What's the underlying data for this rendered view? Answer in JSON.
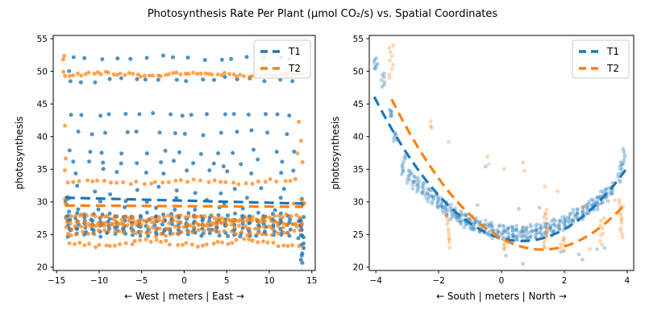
{
  "title": "Photosynthesis Rate Per Plant (μmol CO₂/s) vs. Spatial Coordinates",
  "accent_colors": {
    "t1_blue": "#1f77b4",
    "t2_orange": "#ff7f0e"
  },
  "chart_data": [
    {
      "type": "scatter",
      "panel": "west-east",
      "xlabel": "← West | meters | East →",
      "ylabel": "photosynthesis",
      "xlim": [
        -15.4,
        15.4
      ],
      "ylim": [
        19.5,
        55.5
      ],
      "xticks": [
        -15,
        -10,
        -5,
        0,
        5,
        10,
        15
      ],
      "yticks": [
        20,
        25,
        30,
        35,
        40,
        45,
        50,
        55
      ],
      "legend": {
        "position": "upper-right",
        "entries": [
          {
            "label": "T1",
            "color": "#1f77b4",
            "linestyle": "dashed"
          },
          {
            "label": "T2",
            "color": "#ff7f0e",
            "linestyle": "dashed"
          }
        ]
      },
      "series": [
        {
          "name": "T1",
          "color": "#1f77b4",
          "alpha": 0.8,
          "marker_px": 2.5,
          "seed": 11,
          "bands": [
            {
              "y": 52.05,
              "amp": 0.35,
              "x0": -13.1,
              "x1": 13.7,
              "step": 1.72
            },
            {
              "y": 48.75,
              "amp": 0.42,
              "x0": -13.4,
              "x1": 13.9,
              "step": 1.52
            },
            {
              "y": 43.4,
              "amp": 0.28,
              "x0": -13.3,
              "x1": 13.6,
              "step": 1.62
            },
            {
              "y": 40.6,
              "amp": 0.32,
              "x0": -12.8,
              "x1": 13.6,
              "step": 1.9
            },
            {
              "y": 37.6,
              "amp": 0.35,
              "x0": -13.6,
              "x1": 13.4,
              "step": 2.2
            },
            {
              "y": 36.0,
              "amp": 0.5,
              "x0": -13.4,
              "x1": 13.2,
              "step": 2.05
            },
            {
              "y": 34.6,
              "amp": 0.45,
              "x0": -12.6,
              "x1": 13.6,
              "step": 2.6
            },
            {
              "y": 31.9,
              "amp": 0.8,
              "x0": -13.0,
              "x1": 13.5,
              "step": 2.45
            },
            {
              "y": 30.15,
              "amp": 0.5,
              "x0": -13.6,
              "x1": 12.8,
              "step": 3.1
            },
            {
              "y": 28.9,
              "amp": 0.4,
              "x0": -12.4,
              "x1": 13.0,
              "step": 2.85
            }
          ],
          "columns": [
            {
              "x0": -13.5,
              "x1": 13.05,
              "step": 0.92,
              "y": 26.5,
              "half": 1.5,
              "n": 7
            }
          ],
          "stacks": [
            {
              "x": 13.88,
              "y0": 20.5,
              "y1": 27.8,
              "n": 14
            },
            {
              "x": 13.55,
              "y0": 24.4,
              "y1": 27.6,
              "n": 6
            },
            {
              "x": -13.65,
              "y0": 26.8,
              "y1": 30.4,
              "n": 5
            }
          ],
          "outliers": [
            [
              -13.6,
              50.1
            ],
            [
              13.9,
              29.6
            ],
            [
              13.75,
              30.4
            ],
            [
              -13.9,
              30.2
            ]
          ],
          "trend": {
            "shape": "linear",
            "x0": -14,
            "y0": 30.65,
            "x1": 14,
            "y1": 29.75
          }
        },
        {
          "name": "T2",
          "color": "#ff7f0e",
          "alpha": 0.72,
          "marker_px": 2.5,
          "seed": 23,
          "bands": [
            {
              "y": 49.55,
              "amp": 0.32,
              "x0": -14.0,
              "x1": 14.0,
              "step": 0.47
            },
            {
              "y": 33.1,
              "amp": 0.42,
              "x0": -13.8,
              "x1": 13.8,
              "step": 0.75
            },
            {
              "y": 27.6,
              "amp": 0.45,
              "x0": -13.9,
              "x1": 13.9,
              "step": 0.5
            },
            {
              "y": 26.9,
              "amp": 0.4,
              "x0": -13.85,
              "x1": 13.85,
              "step": 0.52
            },
            {
              "y": 26.3,
              "amp": 0.45,
              "x0": -13.8,
              "x1": 13.9,
              "step": 0.55
            },
            {
              "y": 25.3,
              "amp": 0.5,
              "x0": -13.8,
              "x1": 13.8,
              "step": 0.62
            },
            {
              "y": 23.7,
              "amp": 0.55,
              "x0": -13.5,
              "x1": 13.9,
              "step": 0.6
            }
          ],
          "columns": [],
          "stacks": [
            {
              "x": -14.0,
              "y0": 50.3,
              "y1": 52.8,
              "n": 3
            }
          ],
          "outliers": [
            [
              -14,
              41.7
            ],
            [
              -13.9,
              36.7
            ],
            [
              -13.95,
              34.9
            ],
            [
              -14,
              30.5
            ],
            [
              -13.9,
              29.7
            ],
            [
              13.7,
              54.0
            ],
            [
              13.5,
              42.3
            ],
            [
              13.7,
              39.4
            ],
            [
              13.3,
              37.5
            ],
            [
              13.9,
              36.1
            ],
            [
              13.8,
              30.15
            ],
            [
              14.05,
              29.8
            ],
            [
              12.9,
              29.7
            ]
          ],
          "trend": {
            "shape": "linear",
            "x0": -14,
            "y0": 29.45,
            "x1": 14,
            "y1": 29.25
          }
        }
      ]
    },
    {
      "type": "scatter",
      "panel": "south-north",
      "xlabel": "← South | meters | North →",
      "ylabel": "photosynthesis",
      "xlim": [
        -4.21,
        4.21
      ],
      "ylim": [
        19.5,
        55.5
      ],
      "xticks": [
        -4,
        -2,
        0,
        2,
        4
      ],
      "yticks": [
        20,
        25,
        30,
        35,
        40,
        45,
        50,
        55
      ],
      "legend": {
        "position": "upper-right",
        "entries": [
          {
            "label": "T1",
            "color": "#1f77b4",
            "linestyle": "dashed"
          },
          {
            "label": "T2",
            "color": "#ff7f0e",
            "linestyle": "dashed"
          }
        ]
      },
      "series": [
        {
          "name": "T1",
          "color": "#1f77b4",
          "alpha": 0.32,
          "marker_px": 2.4,
          "seed": 37,
          "stacks": [
            {
              "x": -4.0,
              "y0": 50.3,
              "y1": 52.0,
              "n": 8
            },
            {
              "x": -3.77,
              "y0": 47.7,
              "y1": 49.6,
              "n": 7
            },
            {
              "x": -3.5,
              "y0": 43.0,
              "y1": 44.2,
              "n": 7
            },
            {
              "x": -3.38,
              "y0": 39.3,
              "y1": 40.7,
              "n": 7
            },
            {
              "x": -3.1,
              "y0": 34.2,
              "y1": 37.2,
              "n": 10
            },
            {
              "x": -2.95,
              "y0": 33.0,
              "y1": 34.9,
              "n": 8
            },
            {
              "x": 3.75,
              "y0": 33.0,
              "y1": 36.2,
              "n": 9
            },
            {
              "x": 3.9,
              "y0": 34.6,
              "y1": 38.2,
              "n": 9
            }
          ],
          "valley": {
            "x0": -2.8,
            "x1": 3.62,
            "step": 0.15,
            "a": 0.74,
            "h": 0.5,
            "k": 25.2,
            "half": 0.95,
            "n": 9
          },
          "outliers": [
            [
              0.15,
              21.8
            ],
            [
              0.7,
              20.6
            ],
            [
              2.45,
              21.9
            ],
            [
              2.6,
              21.2
            ],
            [
              3.05,
              22.7
            ],
            [
              1.9,
              22.3
            ],
            [
              -0.75,
              29.5
            ],
            [
              0.55,
              28.9
            ],
            [
              1.2,
              29.2
            ],
            [
              -0.5,
              35.4
            ],
            [
              3.3,
              22.9
            ]
          ],
          "trend": {
            "shape": "quadratic",
            "a": 1.0,
            "h": 0.65,
            "k": 24.0,
            "x0": -4.05,
            "x1": 3.95
          }
        },
        {
          "name": "T2",
          "color": "#ff7f0e",
          "alpha": 0.32,
          "marker_px": 2.4,
          "seed": 53,
          "stacks": [
            {
              "x": -3.5,
              "y0": 48.9,
              "y1": 54.1,
              "n": 9
            },
            {
              "x": -2.2,
              "y0": 41.2,
              "y1": 42.3,
              "n": 3
            },
            {
              "x": -1.7,
              "y0": 23.2,
              "y1": 28.3,
              "n": 12
            },
            {
              "x": -0.4,
              "y0": 35.8,
              "y1": 36.9,
              "n": 2
            },
            {
              "x": 0.12,
              "y0": 22.6,
              "y1": 24.1,
              "n": 5
            },
            {
              "x": 0.7,
              "y0": 34.8,
              "y1": 36.0,
              "n": 2
            },
            {
              "x": 1.4,
              "y0": 22.9,
              "y1": 28.9,
              "n": 15
            },
            {
              "x": 1.95,
              "y0": 22.3,
              "y1": 24.6,
              "n": 8
            },
            {
              "x": 3.2,
              "y0": 23.6,
              "y1": 27.6,
              "n": 8
            },
            {
              "x": 3.8,
              "y0": 24.7,
              "y1": 30.4,
              "n": 13
            }
          ],
          "outliers": [
            [
              -1.7,
              39.3
            ],
            [
              0.1,
              35.1
            ],
            [
              1.38,
              32.4
            ],
            [
              1.8,
              31.6
            ],
            [
              2.6,
              29.2
            ],
            [
              2.8,
              22.8
            ],
            [
              3.6,
              30.2
            ]
          ],
          "trend": {
            "shape": "quadratic",
            "a": 1.0,
            "h": 1.3,
            "k": 22.7,
            "x0": -3.5,
            "x1": 3.88
          }
        }
      ]
    }
  ]
}
